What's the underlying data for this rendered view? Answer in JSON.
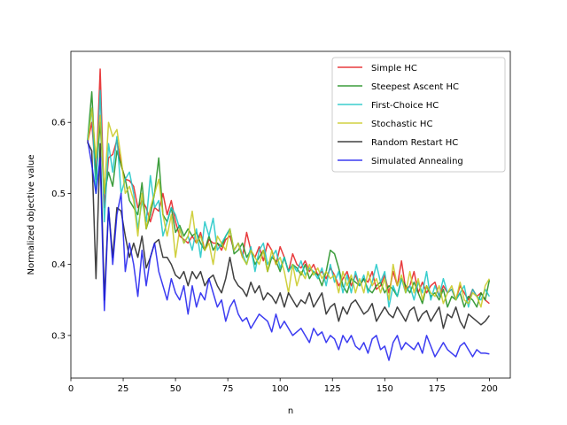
{
  "chart_data": {
    "type": "line",
    "title": "",
    "xlabel": "n",
    "ylabel": "Normalized objective value",
    "xlim": [
      0,
      210
    ],
    "ylim": [
      0.24,
      0.7
    ],
    "xticks": [
      0,
      25,
      50,
      75,
      100,
      125,
      150,
      175,
      200
    ],
    "yticks": [
      0.3,
      0.4,
      0.5,
      0.6
    ],
    "grid": false,
    "legend_position": "top-right",
    "series": [
      {
        "name": "Simple HC",
        "color": "#e41a1c",
        "x": [
          8,
          10,
          12,
          14,
          16,
          18,
          20,
          22,
          24,
          26,
          28,
          30,
          32,
          34,
          36,
          38,
          40,
          42,
          44,
          46,
          48,
          50,
          52,
          54,
          56,
          58,
          60,
          62,
          64,
          66,
          68,
          70,
          72,
          74,
          76,
          78,
          80,
          82,
          84,
          86,
          88,
          90,
          92,
          94,
          96,
          98,
          100,
          102,
          104,
          106,
          108,
          110,
          112,
          114,
          116,
          118,
          120,
          122,
          124,
          126,
          128,
          130,
          132,
          134,
          136,
          138,
          140,
          142,
          144,
          146,
          148,
          150,
          152,
          154,
          156,
          158,
          160,
          162,
          164,
          166,
          168,
          170,
          172,
          174,
          176,
          178,
          180,
          182,
          184,
          186,
          188,
          190,
          192,
          194,
          196,
          198,
          200
        ],
        "y": [
          0.572,
          0.6,
          0.52,
          0.675,
          0.48,
          0.55,
          0.555,
          0.575,
          0.54,
          0.52,
          0.518,
          0.51,
          0.48,
          0.49,
          0.48,
          0.46,
          0.48,
          0.475,
          0.5,
          0.47,
          0.49,
          0.46,
          0.44,
          0.435,
          0.43,
          0.44,
          0.43,
          0.445,
          0.42,
          0.435,
          0.43,
          0.43,
          0.42,
          0.435,
          0.44,
          0.42,
          0.43,
          0.41,
          0.445,
          0.42,
          0.41,
          0.425,
          0.405,
          0.43,
          0.42,
          0.4,
          0.425,
          0.41,
          0.39,
          0.415,
          0.4,
          0.395,
          0.405,
          0.39,
          0.4,
          0.385,
          0.39,
          0.38,
          0.395,
          0.385,
          0.37,
          0.38,
          0.39,
          0.37,
          0.385,
          0.37,
          0.38,
          0.375,
          0.39,
          0.365,
          0.37,
          0.385,
          0.36,
          0.39,
          0.37,
          0.405,
          0.365,
          0.37,
          0.39,
          0.36,
          0.375,
          0.36,
          0.37,
          0.375,
          0.355,
          0.37,
          0.36,
          0.365,
          0.35,
          0.37,
          0.36,
          0.35,
          0.365,
          0.355,
          0.36,
          0.35,
          0.345
        ]
      },
      {
        "name": "Steepest Ascent HC",
        "color": "#1a8c1a",
        "x": [
          8,
          10,
          12,
          14,
          16,
          18,
          20,
          22,
          24,
          26,
          28,
          30,
          32,
          34,
          36,
          38,
          40,
          42,
          44,
          46,
          48,
          50,
          52,
          54,
          56,
          58,
          60,
          62,
          64,
          66,
          68,
          70,
          72,
          74,
          76,
          78,
          80,
          82,
          84,
          86,
          88,
          90,
          92,
          94,
          96,
          98,
          100,
          102,
          104,
          106,
          108,
          110,
          112,
          114,
          116,
          118,
          120,
          122,
          124,
          126,
          128,
          130,
          132,
          134,
          136,
          138,
          140,
          142,
          144,
          146,
          148,
          150,
          152,
          154,
          156,
          158,
          160,
          162,
          164,
          166,
          168,
          170,
          172,
          174,
          176,
          178,
          180,
          182,
          184,
          186,
          188,
          190,
          192,
          194,
          196,
          198,
          200
        ],
        "y": [
          0.575,
          0.643,
          0.52,
          0.6,
          0.5,
          0.53,
          0.51,
          0.56,
          0.54,
          0.52,
          0.49,
          0.48,
          0.47,
          0.515,
          0.45,
          0.47,
          0.5,
          0.55,
          0.47,
          0.46,
          0.48,
          0.445,
          0.455,
          0.44,
          0.45,
          0.44,
          0.445,
          0.43,
          0.42,
          0.44,
          0.42,
          0.43,
          0.425,
          0.44,
          0.45,
          0.415,
          0.42,
          0.43,
          0.41,
          0.42,
          0.4,
          0.41,
          0.42,
          0.39,
          0.41,
          0.405,
          0.39,
          0.41,
          0.39,
          0.4,
          0.395,
          0.385,
          0.4,
          0.38,
          0.39,
          0.385,
          0.37,
          0.39,
          0.42,
          0.415,
          0.395,
          0.37,
          0.36,
          0.38,
          0.375,
          0.37,
          0.38,
          0.365,
          0.36,
          0.37,
          0.375,
          0.36,
          0.37,
          0.365,
          0.355,
          0.38,
          0.37,
          0.36,
          0.375,
          0.36,
          0.345,
          0.37,
          0.355,
          0.36,
          0.35,
          0.365,
          0.34,
          0.355,
          0.35,
          0.36,
          0.34,
          0.355,
          0.35,
          0.34,
          0.36,
          0.35,
          0.378
        ]
      },
      {
        "name": "First-Choice HC",
        "color": "#17c6c6",
        "x": [
          8,
          10,
          12,
          14,
          16,
          18,
          20,
          22,
          24,
          26,
          28,
          30,
          32,
          34,
          36,
          38,
          40,
          42,
          44,
          46,
          48,
          50,
          52,
          54,
          56,
          58,
          60,
          62,
          64,
          66,
          68,
          70,
          72,
          74,
          76,
          78,
          80,
          82,
          84,
          86,
          88,
          90,
          92,
          94,
          96,
          98,
          100,
          102,
          104,
          106,
          108,
          110,
          112,
          114,
          116,
          118,
          120,
          122,
          124,
          126,
          128,
          130,
          132,
          134,
          136,
          138,
          140,
          142,
          144,
          146,
          148,
          150,
          152,
          154,
          156,
          158,
          160,
          162,
          164,
          166,
          168,
          170,
          172,
          174,
          176,
          178,
          180,
          182,
          184,
          186,
          188,
          190,
          192,
          194,
          196,
          198,
          200
        ],
        "y": [
          0.575,
          0.62,
          0.5,
          0.645,
          0.46,
          0.57,
          0.53,
          0.58,
          0.5,
          0.52,
          0.53,
          0.5,
          0.45,
          0.49,
          0.46,
          0.525,
          0.48,
          0.49,
          0.44,
          0.46,
          0.48,
          0.47,
          0.45,
          0.43,
          0.44,
          0.42,
          0.45,
          0.41,
          0.46,
          0.44,
          0.465,
          0.42,
          0.43,
          0.44,
          0.45,
          0.42,
          0.43,
          0.415,
          0.4,
          0.425,
          0.39,
          0.42,
          0.43,
          0.4,
          0.41,
          0.42,
          0.395,
          0.41,
          0.39,
          0.4,
          0.39,
          0.405,
          0.385,
          0.395,
          0.39,
          0.38,
          0.395,
          0.37,
          0.4,
          0.375,
          0.39,
          0.36,
          0.385,
          0.36,
          0.39,
          0.37,
          0.385,
          0.36,
          0.375,
          0.4,
          0.375,
          0.39,
          0.34,
          0.37,
          0.355,
          0.38,
          0.36,
          0.37,
          0.35,
          0.375,
          0.36,
          0.39,
          0.35,
          0.37,
          0.355,
          0.38,
          0.36,
          0.365,
          0.35,
          0.36,
          0.37,
          0.34,
          0.365,
          0.355,
          0.35,
          0.365,
          0.355
        ]
      },
      {
        "name": "Stochastic HC",
        "color": "#c8c81e",
        "x": [
          8,
          10,
          12,
          14,
          16,
          18,
          20,
          22,
          24,
          26,
          28,
          30,
          32,
          34,
          36,
          38,
          40,
          42,
          44,
          46,
          48,
          50,
          52,
          54,
          56,
          58,
          60,
          62,
          64,
          66,
          68,
          70,
          72,
          74,
          76,
          78,
          80,
          82,
          84,
          86,
          88,
          90,
          92,
          94,
          96,
          98,
          100,
          102,
          104,
          106,
          108,
          110,
          112,
          114,
          116,
          118,
          120,
          122,
          124,
          126,
          128,
          130,
          132,
          134,
          136,
          138,
          140,
          142,
          144,
          146,
          148,
          150,
          152,
          154,
          156,
          158,
          160,
          162,
          164,
          166,
          168,
          170,
          172,
          174,
          176,
          178,
          180,
          182,
          184,
          186,
          188,
          190,
          192,
          194,
          196,
          198,
          200
        ],
        "y": [
          0.57,
          0.62,
          0.55,
          0.61,
          0.5,
          0.6,
          0.58,
          0.59,
          0.55,
          0.5,
          0.51,
          0.49,
          0.44,
          0.5,
          0.45,
          0.48,
          0.5,
          0.52,
          0.47,
          0.44,
          0.47,
          0.41,
          0.45,
          0.43,
          0.44,
          0.475,
          0.43,
          0.44,
          0.42,
          0.43,
          0.4,
          0.44,
          0.43,
          0.42,
          0.45,
          0.42,
          0.43,
          0.41,
          0.4,
          0.42,
          0.41,
          0.4,
          0.42,
          0.39,
          0.42,
          0.4,
          0.41,
          0.39,
          0.36,
          0.4,
          0.37,
          0.39,
          0.38,
          0.4,
          0.385,
          0.395,
          0.38,
          0.39,
          0.38,
          0.385,
          0.36,
          0.39,
          0.37,
          0.385,
          0.36,
          0.38,
          0.36,
          0.39,
          0.37,
          0.38,
          0.36,
          0.38,
          0.35,
          0.4,
          0.37,
          0.385,
          0.36,
          0.39,
          0.36,
          0.38,
          0.35,
          0.37,
          0.36,
          0.355,
          0.37,
          0.345,
          0.36,
          0.37,
          0.35,
          0.375,
          0.35,
          0.345,
          0.36,
          0.355,
          0.34,
          0.37,
          0.38
        ]
      },
      {
        "name": "Random Restart HC",
        "color": "#1f1f1f",
        "x": [
          8,
          10,
          12,
          14,
          16,
          18,
          20,
          22,
          24,
          26,
          28,
          30,
          32,
          34,
          36,
          38,
          40,
          42,
          44,
          46,
          48,
          50,
          52,
          54,
          56,
          58,
          60,
          62,
          64,
          66,
          68,
          70,
          72,
          74,
          76,
          78,
          80,
          82,
          84,
          86,
          88,
          90,
          92,
          94,
          96,
          98,
          100,
          102,
          104,
          106,
          108,
          110,
          112,
          114,
          116,
          118,
          120,
          122,
          124,
          126,
          128,
          130,
          132,
          134,
          136,
          138,
          140,
          142,
          144,
          146,
          148,
          150,
          152,
          154,
          156,
          158,
          160,
          162,
          164,
          166,
          168,
          170,
          172,
          174,
          176,
          178,
          180,
          182,
          184,
          186,
          188,
          190,
          192,
          194,
          196,
          198,
          200
        ],
        "y": [
          0.572,
          0.56,
          0.38,
          0.57,
          0.35,
          0.48,
          0.41,
          0.48,
          0.475,
          0.44,
          0.41,
          0.43,
          0.41,
          0.44,
          0.395,
          0.41,
          0.43,
          0.435,
          0.41,
          0.41,
          0.4,
          0.385,
          0.38,
          0.39,
          0.37,
          0.39,
          0.38,
          0.39,
          0.37,
          0.38,
          0.385,
          0.37,
          0.36,
          0.38,
          0.41,
          0.38,
          0.37,
          0.365,
          0.355,
          0.375,
          0.36,
          0.37,
          0.35,
          0.36,
          0.355,
          0.345,
          0.36,
          0.34,
          0.36,
          0.35,
          0.34,
          0.35,
          0.345,
          0.36,
          0.34,
          0.35,
          0.36,
          0.33,
          0.34,
          0.345,
          0.32,
          0.34,
          0.33,
          0.345,
          0.35,
          0.34,
          0.33,
          0.335,
          0.345,
          0.32,
          0.33,
          0.34,
          0.33,
          0.325,
          0.34,
          0.33,
          0.32,
          0.335,
          0.34,
          0.32,
          0.33,
          0.335,
          0.32,
          0.33,
          0.34,
          0.31,
          0.33,
          0.325,
          0.34,
          0.32,
          0.31,
          0.33,
          0.325,
          0.32,
          0.315,
          0.32,
          0.328
        ]
      },
      {
        "name": "Simulated Annealing",
        "color": "#1a1aee",
        "x": [
          8,
          10,
          12,
          14,
          16,
          18,
          20,
          22,
          24,
          26,
          28,
          30,
          32,
          34,
          36,
          38,
          40,
          42,
          44,
          46,
          48,
          50,
          52,
          54,
          56,
          58,
          60,
          62,
          64,
          66,
          68,
          70,
          72,
          74,
          76,
          78,
          80,
          82,
          84,
          86,
          88,
          90,
          92,
          94,
          96,
          98,
          100,
          102,
          104,
          106,
          108,
          110,
          112,
          114,
          116,
          118,
          120,
          122,
          124,
          126,
          128,
          130,
          132,
          134,
          136,
          138,
          140,
          142,
          144,
          146,
          148,
          150,
          152,
          154,
          156,
          158,
          160,
          162,
          164,
          166,
          168,
          170,
          172,
          174,
          176,
          178,
          180,
          182,
          184,
          186,
          188,
          190,
          192,
          194,
          196,
          198,
          200
        ],
        "y": [
          0.575,
          0.54,
          0.5,
          0.55,
          0.335,
          0.48,
          0.4,
          0.47,
          0.5,
          0.39,
          0.43,
          0.4,
          0.355,
          0.42,
          0.37,
          0.41,
          0.43,
          0.39,
          0.37,
          0.35,
          0.38,
          0.36,
          0.35,
          0.37,
          0.33,
          0.37,
          0.34,
          0.36,
          0.35,
          0.38,
          0.36,
          0.34,
          0.35,
          0.32,
          0.34,
          0.35,
          0.33,
          0.32,
          0.325,
          0.31,
          0.32,
          0.33,
          0.325,
          0.32,
          0.305,
          0.33,
          0.31,
          0.32,
          0.31,
          0.3,
          0.305,
          0.31,
          0.3,
          0.29,
          0.31,
          0.3,
          0.305,
          0.29,
          0.3,
          0.295,
          0.28,
          0.3,
          0.29,
          0.3,
          0.285,
          0.28,
          0.29,
          0.275,
          0.295,
          0.3,
          0.28,
          0.285,
          0.265,
          0.29,
          0.3,
          0.28,
          0.29,
          0.285,
          0.28,
          0.29,
          0.275,
          0.3,
          0.285,
          0.27,
          0.28,
          0.29,
          0.28,
          0.275,
          0.27,
          0.285,
          0.29,
          0.28,
          0.27,
          0.28,
          0.275,
          0.275,
          0.274
        ]
      }
    ]
  }
}
